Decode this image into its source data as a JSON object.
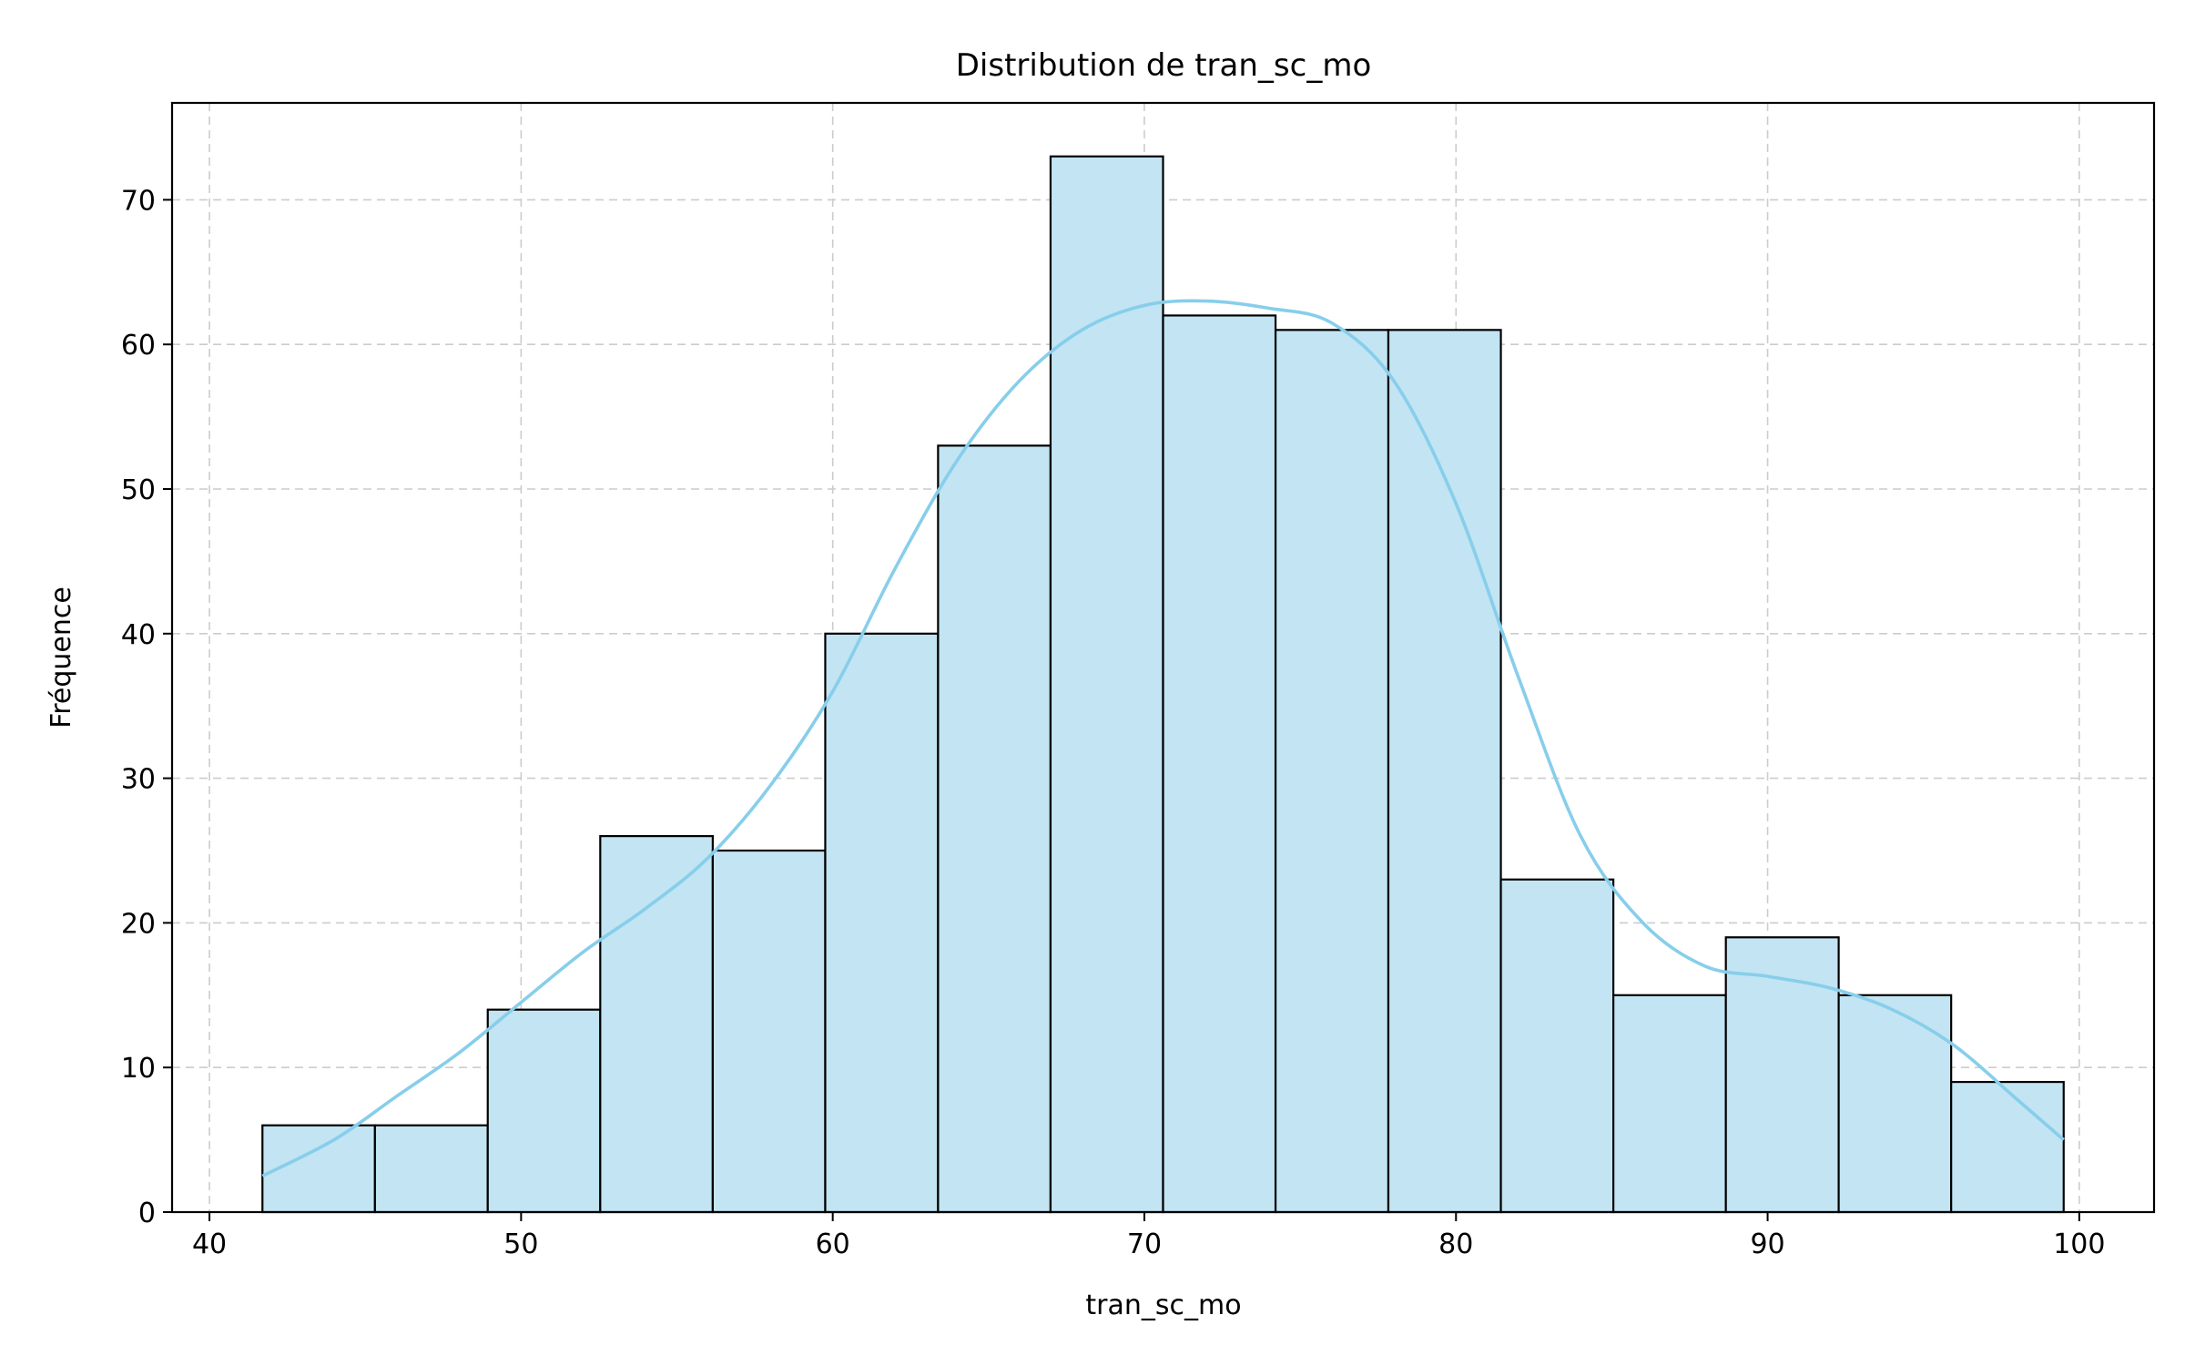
{
  "chart_data": {
    "type": "bar",
    "title": "Distribution de tran_sc_mo",
    "xlabel": "tran_sc_mo",
    "ylabel": "Fréquence",
    "xlim": [
      38.8,
      102.4
    ],
    "ylim": [
      0,
      76.7
    ],
    "xticks": [
      40,
      50,
      60,
      70,
      80,
      90,
      100
    ],
    "yticks": [
      0,
      10,
      20,
      30,
      40,
      50,
      60,
      70
    ],
    "grid": true,
    "bins": {
      "edges": [
        41.7,
        45.31,
        48.93,
        52.54,
        56.15,
        59.76,
        63.38,
        66.99,
        70.6,
        74.21,
        77.83,
        81.44,
        85.05,
        88.66,
        92.28,
        95.89,
        99.5
      ],
      "counts": [
        6,
        6,
        14,
        26,
        25,
        40,
        53,
        73,
        62,
        61,
        61,
        23,
        15,
        19,
        15,
        9
      ]
    },
    "kde": {
      "x": [
        41.7,
        44,
        46,
        48,
        50,
        52,
        54,
        56,
        58,
        60,
        62,
        64,
        66,
        68,
        70,
        72,
        74,
        76,
        78,
        80,
        82,
        84,
        86,
        88,
        90,
        92,
        94,
        96,
        98,
        99.5
      ],
      "y": [
        2.5,
        5,
        8,
        11,
        14.5,
        18,
        21,
        24.5,
        29.5,
        36,
        44.5,
        52,
        57.5,
        61,
        62.7,
        63,
        62.5,
        61.5,
        57.5,
        49,
        37,
        26,
        20,
        17,
        16.3,
        15.5,
        14,
        11.5,
        7.8,
        5
      ]
    },
    "colors": {
      "bar_fill": "#c2e4f3",
      "bar_edge": "#000000",
      "kde_line": "#87ceeb",
      "grid": "#cccccc"
    }
  }
}
